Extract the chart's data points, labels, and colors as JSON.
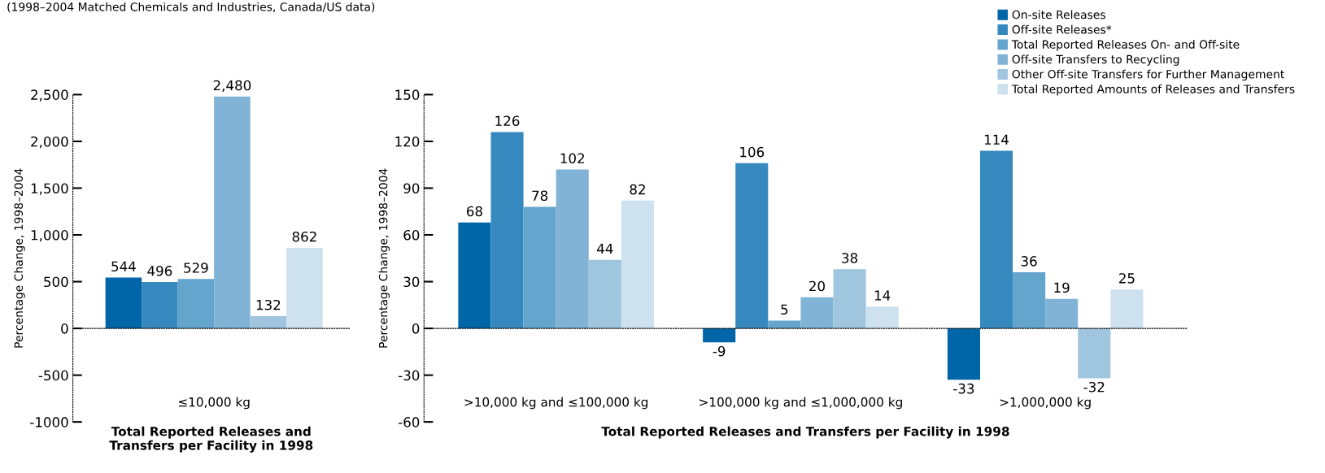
{
  "chart_data": [
    {
      "type": "bar",
      "subtitle": "(1998–2004 Matched Chemicals and Industries, Canada/US data)",
      "categories": [
        "≤10,000 kg"
      ],
      "xlabel": "Total Reported Releases and\nTransfers per Facility in 1998",
      "ylabel": "Percentage Change, 1998–2004",
      "ylim": [
        -1000,
        2500
      ],
      "yticks": [
        {
          "value": -1000,
          "label": "-1000"
        },
        {
          "value": -500,
          "label": "-500"
        },
        0,
        500,
        {
          "value": 1000,
          "label": "1,000"
        },
        {
          "value": 1500,
          "label": "1,500"
        },
        {
          "value": 2000,
          "label": "2,000"
        },
        {
          "value": 2500,
          "label": "2,500"
        }
      ],
      "series": [
        {
          "color": "#0066a8",
          "values": [
            544
          ],
          "value_labels": [
            "544"
          ]
        },
        {
          "color": "#3689bf",
          "values": [
            496
          ],
          "value_labels": [
            "496"
          ]
        },
        {
          "color": "#64a5cd",
          "values": [
            529
          ],
          "value_labels": [
            "529"
          ]
        },
        {
          "color": "#80b3d6",
          "values": [
            2480
          ],
          "value_labels": [
            "2,480"
          ]
        },
        {
          "color": "#9fc5df",
          "values": [
            132
          ],
          "value_labels": [
            "132"
          ]
        },
        {
          "color": "#cde2ee",
          "values": [
            862
          ],
          "value_labels": [
            "862"
          ]
        }
      ]
    },
    {
      "type": "bar",
      "categories": [
        ">10,000 kg and ≤100,000 kg",
        ">100,000 kg and ≤1,000,000 kg",
        ">1,000,000 kg"
      ],
      "xlabel": "Total Reported Releases and Transfers per Facility in 1998",
      "ylabel": "Percentage Change, 1998–2004",
      "ylim": [
        -60,
        150
      ],
      "yticks": [
        -60,
        -30,
        0,
        30,
        60,
        90,
        120,
        150
      ],
      "series": [
        {
          "name": "On-site Releases",
          "color": "#0066a8",
          "values": [
            68,
            -9,
            -33
          ]
        },
        {
          "name": "Off-site Releases*",
          "color": "#3689bf",
          "values": [
            126,
            106,
            114
          ]
        },
        {
          "name": "Total Reported Releases On- and Off-site",
          "color": "#64a5cd",
          "values": [
            78,
            5,
            36
          ]
        },
        {
          "name": "Off-site Transfers to Recycling",
          "color": "#80b3d6",
          "values": [
            102,
            20,
            19
          ]
        },
        {
          "name": "Other Off-site Transfers for Further Management",
          "color": "#9fc5df",
          "values": [
            44,
            38,
            -32
          ]
        },
        {
          "name": "Total Reported Amounts of Releases and Transfers",
          "color": "#cde2ee",
          "values": [
            82,
            14,
            25
          ]
        }
      ],
      "data_labels": true,
      "legend": "top right"
    }
  ]
}
